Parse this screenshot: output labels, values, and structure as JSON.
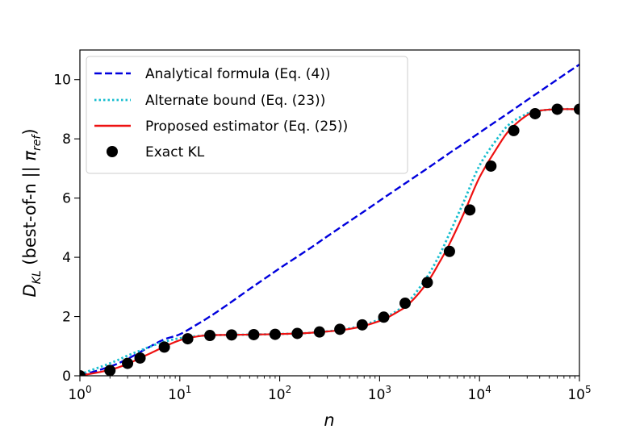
{
  "chart_data": {
    "type": "line",
    "xscale": "log",
    "xlim": [
      1,
      100000
    ],
    "ylim": [
      0,
      11
    ],
    "xlabel": "n",
    "ylabel": {
      "main": "D",
      "sub": "KL",
      "paren_open": " (best-of-n || ",
      "pi": "π",
      "pi_sub": "ref",
      "paren_close": ")"
    },
    "grid": false,
    "legend_position": "top-left",
    "x_ticks": [
      {
        "value": 1,
        "base": "10",
        "exp": "0"
      },
      {
        "value": 10,
        "base": "10",
        "exp": "1"
      },
      {
        "value": 100,
        "base": "10",
        "exp": "2"
      },
      {
        "value": 1000,
        "base": "10",
        "exp": "3"
      },
      {
        "value": 10000,
        "base": "10",
        "exp": "4"
      },
      {
        "value": 100000,
        "base": "10",
        "exp": "5"
      }
    ],
    "y_ticks": [
      {
        "value": 0,
        "label": "0"
      },
      {
        "value": 2,
        "label": "2"
      },
      {
        "value": 4,
        "label": "4"
      },
      {
        "value": 6,
        "label": "6"
      },
      {
        "value": 8,
        "label": "8"
      },
      {
        "value": 10,
        "label": "10"
      }
    ],
    "series": [
      {
        "name": "Analytical formula (Eq. (4))",
        "style": "dashed",
        "color": "#0000dd",
        "x": [
          1,
          2,
          3,
          5,
          7,
          10,
          15,
          20,
          30,
          50,
          70,
          100,
          200,
          300,
          500,
          700,
          1000,
          2000,
          3000,
          5000,
          7000,
          10000,
          20000,
          30000,
          50000,
          70000,
          100000
        ],
        "y": [
          0,
          0.31,
          0.57,
          0.98,
          1.23,
          1.4,
          1.74,
          2.0,
          2.4,
          2.93,
          3.27,
          3.63,
          4.3,
          4.71,
          5.22,
          5.55,
          5.91,
          6.6,
          7.0,
          7.52,
          7.85,
          8.21,
          8.9,
          9.31,
          9.82,
          10.16,
          10.51
        ]
      },
      {
        "name": "Alternate bound (Eq. (23))",
        "style": "dotted",
        "color": "#17becf",
        "x": [
          1,
          2,
          3,
          4,
          5,
          7,
          10,
          15,
          20,
          30,
          50,
          100,
          200,
          500,
          1000,
          1500,
          2000,
          3000,
          4000,
          5000,
          7000,
          10000,
          15000,
          20000,
          30000,
          40000,
          60000,
          100000
        ],
        "y": [
          0.05,
          0.42,
          0.68,
          0.85,
          0.98,
          1.15,
          1.27,
          1.34,
          1.37,
          1.38,
          1.39,
          1.41,
          1.45,
          1.6,
          1.9,
          2.2,
          2.55,
          3.35,
          4.1,
          4.8,
          5.9,
          7.1,
          8.0,
          8.5,
          8.85,
          8.95,
          9.0,
          9.0
        ]
      },
      {
        "name": "Proposed estimator (Eq. (25))",
        "style": "solid",
        "color": "#ee1111",
        "x": [
          1,
          2,
          3,
          4,
          5,
          7,
          10,
          15,
          20,
          30,
          50,
          100,
          200,
          500,
          1000,
          1500,
          2000,
          3000,
          4000,
          5000,
          7000,
          10000,
          15000,
          20000,
          30000,
          40000,
          60000,
          100000
        ],
        "y": [
          0,
          0.2,
          0.4,
          0.6,
          0.75,
          0.98,
          1.2,
          1.33,
          1.37,
          1.38,
          1.39,
          1.41,
          1.45,
          1.58,
          1.85,
          2.15,
          2.45,
          3.15,
          3.85,
          4.45,
          5.5,
          6.7,
          7.7,
          8.3,
          8.8,
          8.95,
          9.0,
          9.0
        ]
      },
      {
        "name": "Exact KL",
        "style": "markers",
        "color": "#000000",
        "x": [
          1,
          2,
          3,
          4,
          7,
          12,
          20,
          33,
          55,
          90,
          150,
          250,
          400,
          670,
          1100,
          1800,
          3000,
          5000,
          8000,
          13000,
          22000,
          36000,
          60000,
          100000
        ],
        "y": [
          0,
          0.18,
          0.42,
          0.6,
          0.97,
          1.25,
          1.36,
          1.38,
          1.39,
          1.4,
          1.43,
          1.48,
          1.57,
          1.72,
          1.98,
          2.45,
          3.15,
          4.2,
          5.6,
          7.08,
          8.28,
          8.85,
          9.0,
          9.0
        ]
      }
    ]
  }
}
